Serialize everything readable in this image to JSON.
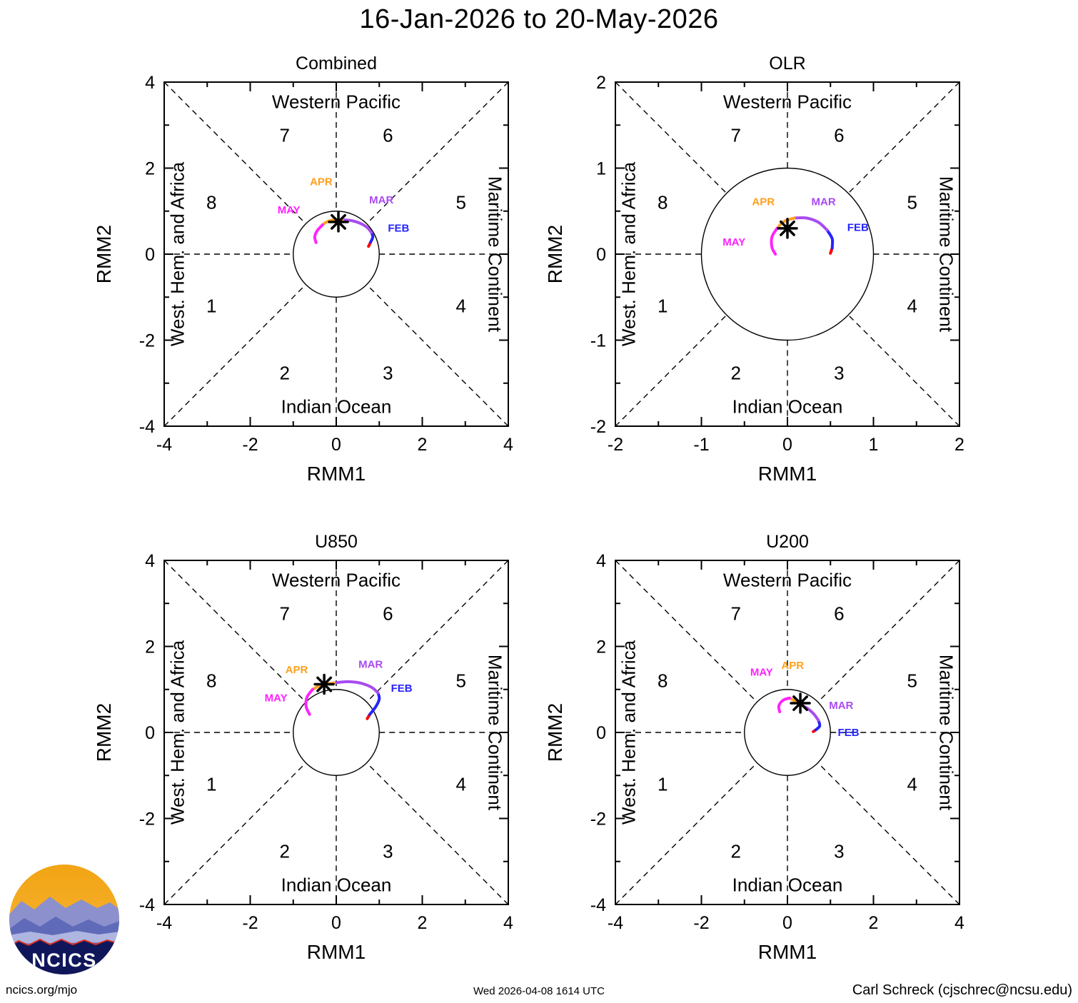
{
  "page": {
    "title": "16-Jan-2026 to 20-May-2026",
    "footer": {
      "left": "ncics.org/mjo",
      "center": "Wed 2026-04-08 1614 UTC",
      "right": "Carl Schreck (cjschrec@ncsu.edu)"
    },
    "logo": {
      "text": "NCICS"
    }
  },
  "month_colors": {
    "JAN": "#FF0000",
    "FEB": "#2424FF",
    "MAR": "#A84BF0",
    "APR": "#FFA01E",
    "MAY": "#FF22FF"
  },
  "chart_data": [
    {
      "type": "line",
      "title": "Combined",
      "xlabel": "RMM1",
      "ylabel": "RMM2",
      "xlim": [
        -4,
        4
      ],
      "ylim": [
        -4,
        4
      ],
      "major_tick": 2,
      "minor_tick": 1,
      "circle_radius": 1,
      "grid": false,
      "phase_labels": [
        "1",
        "2",
        "3",
        "4",
        "5",
        "6",
        "7",
        "8"
      ],
      "region_labels": {
        "top": "Western Pacific",
        "right": "Maritime Continent",
        "bottom": "Indian Ocean",
        "left": "West. Hem. and Africa"
      },
      "marker": {
        "x": 0.05,
        "y": 0.75
      },
      "segments": [
        {
          "month": "JAN",
          "points": [
            [
              0.75,
              0.18
            ],
            [
              0.8,
              0.28
            ]
          ]
        },
        {
          "month": "FEB",
          "points": [
            [
              0.8,
              0.28
            ],
            [
              0.85,
              0.4
            ],
            [
              0.82,
              0.5
            ]
          ]
        },
        {
          "month": "MAR",
          "points": [
            [
              0.82,
              0.5
            ],
            [
              0.72,
              0.62
            ],
            [
              0.55,
              0.72
            ],
            [
              0.35,
              0.78
            ],
            [
              0.15,
              0.8
            ]
          ]
        },
        {
          "month": "APR",
          "points": [
            [
              0.15,
              0.8
            ],
            [
              -0.05,
              0.8
            ],
            [
              -0.22,
              0.75
            ],
            [
              -0.32,
              0.68
            ]
          ]
        },
        {
          "month": "MAY",
          "points": [
            [
              -0.32,
              0.68
            ],
            [
              -0.44,
              0.55
            ],
            [
              -0.5,
              0.4
            ],
            [
              -0.47,
              0.27
            ]
          ]
        }
      ],
      "month_labels": [
        {
          "text": "APR",
          "x": -0.35,
          "y": 1.6
        },
        {
          "text": "MAR",
          "x": 1.05,
          "y": 1.18
        },
        {
          "text": "MAY",
          "x": -1.1,
          "y": 0.95
        },
        {
          "text": "FEB",
          "x": 1.45,
          "y": 0.52
        }
      ]
    },
    {
      "type": "line",
      "title": "OLR",
      "xlabel": "RMM1",
      "ylabel": "RMM2",
      "xlim": [
        -2,
        2
      ],
      "ylim": [
        -2,
        2
      ],
      "major_tick": 1,
      "minor_tick": 0.5,
      "circle_radius": 1,
      "grid": false,
      "phase_labels": [
        "1",
        "2",
        "3",
        "4",
        "5",
        "6",
        "7",
        "8"
      ],
      "region_labels": {
        "top": "Western Pacific",
        "right": "Maritime Continent",
        "bottom": "Indian Ocean",
        "left": "West. Hem. and Africa"
      },
      "marker": {
        "x": 0.0,
        "y": 0.3
      },
      "segments": [
        {
          "month": "JAN",
          "points": [
            [
              0.5,
              0.01
            ],
            [
              0.52,
              0.07
            ]
          ]
        },
        {
          "month": "FEB",
          "points": [
            [
              0.52,
              0.07
            ],
            [
              0.52,
              0.18
            ],
            [
              0.46,
              0.28
            ]
          ]
        },
        {
          "month": "MAR",
          "points": [
            [
              0.46,
              0.28
            ],
            [
              0.36,
              0.37
            ],
            [
              0.22,
              0.42
            ],
            [
              0.08,
              0.42
            ]
          ]
        },
        {
          "month": "APR",
          "points": [
            [
              0.08,
              0.42
            ],
            [
              -0.04,
              0.38
            ],
            [
              -0.12,
              0.3
            ]
          ]
        },
        {
          "month": "MAY",
          "points": [
            [
              -0.12,
              0.3
            ],
            [
              -0.18,
              0.2
            ],
            [
              -0.18,
              0.08
            ],
            [
              -0.14,
              0.0
            ]
          ]
        }
      ],
      "month_labels": [
        {
          "text": "APR",
          "x": -0.28,
          "y": 0.57
        },
        {
          "text": "MAR",
          "x": 0.42,
          "y": 0.57
        },
        {
          "text": "MAY",
          "x": -0.62,
          "y": 0.1
        },
        {
          "text": "FEB",
          "x": 0.82,
          "y": 0.27
        }
      ]
    },
    {
      "type": "line",
      "title": "U850",
      "xlabel": "RMM1",
      "ylabel": "RMM2",
      "xlim": [
        -4,
        4
      ],
      "ylim": [
        -4,
        4
      ],
      "major_tick": 2,
      "minor_tick": 1,
      "circle_radius": 1,
      "grid": false,
      "phase_labels": [
        "1",
        "2",
        "3",
        "4",
        "5",
        "6",
        "7",
        "8"
      ],
      "region_labels": {
        "top": "Western Pacific",
        "right": "Maritime Continent",
        "bottom": "Indian Ocean",
        "left": "West. Hem. and Africa"
      },
      "marker": {
        "x": -0.28,
        "y": 1.12
      },
      "segments": [
        {
          "month": "JAN",
          "points": [
            [
              0.72,
              0.32
            ],
            [
              0.78,
              0.42
            ]
          ]
        },
        {
          "month": "FEB",
          "points": [
            [
              0.78,
              0.42
            ],
            [
              0.92,
              0.6
            ],
            [
              1.0,
              0.78
            ],
            [
              0.97,
              0.92
            ]
          ]
        },
        {
          "month": "MAR",
          "points": [
            [
              0.97,
              0.92
            ],
            [
              0.82,
              1.05
            ],
            [
              0.55,
              1.15
            ],
            [
              0.25,
              1.18
            ],
            [
              -0.05,
              1.15
            ]
          ]
        },
        {
          "month": "APR",
          "points": [
            [
              -0.05,
              1.15
            ],
            [
              -0.35,
              1.1
            ],
            [
              -0.55,
              1.0
            ]
          ]
        },
        {
          "month": "MAY",
          "points": [
            [
              -0.55,
              1.0
            ],
            [
              -0.68,
              0.82
            ],
            [
              -0.7,
              0.6
            ],
            [
              -0.62,
              0.42
            ]
          ]
        }
      ],
      "month_labels": [
        {
          "text": "APR",
          "x": -0.92,
          "y": 1.38
        },
        {
          "text": "MAR",
          "x": 0.8,
          "y": 1.5
        },
        {
          "text": "MAY",
          "x": -1.4,
          "y": 0.72
        },
        {
          "text": "FEB",
          "x": 1.52,
          "y": 0.95
        }
      ]
    },
    {
      "type": "line",
      "title": "U200",
      "xlabel": "RMM1",
      "ylabel": "RMM2",
      "xlim": [
        -4,
        4
      ],
      "ylim": [
        -4,
        4
      ],
      "major_tick": 2,
      "minor_tick": 1,
      "circle_radius": 1,
      "grid": false,
      "phase_labels": [
        "1",
        "2",
        "3",
        "4",
        "5",
        "6",
        "7",
        "8"
      ],
      "region_labels": {
        "top": "Western Pacific",
        "right": "Maritime Continent",
        "bottom": "Indian Ocean",
        "left": "West. Hem. and Africa"
      },
      "marker": {
        "x": 0.3,
        "y": 0.68
      },
      "segments": [
        {
          "month": "JAN",
          "points": [
            [
              0.6,
              0.02
            ],
            [
              0.66,
              0.06
            ]
          ]
        },
        {
          "month": "FEB",
          "points": [
            [
              0.66,
              0.06
            ],
            [
              0.75,
              0.15
            ],
            [
              0.72,
              0.28
            ]
          ]
        },
        {
          "month": "MAR",
          "points": [
            [
              0.72,
              0.28
            ],
            [
              0.62,
              0.42
            ],
            [
              0.48,
              0.55
            ],
            [
              0.35,
              0.62
            ]
          ]
        },
        {
          "month": "APR",
          "points": [
            [
              0.35,
              0.62
            ],
            [
              0.2,
              0.72
            ],
            [
              0.05,
              0.8
            ]
          ]
        },
        {
          "month": "MAY",
          "points": [
            [
              0.05,
              0.8
            ],
            [
              -0.1,
              0.75
            ],
            [
              -0.2,
              0.62
            ],
            [
              -0.18,
              0.48
            ]
          ]
        }
      ],
      "month_labels": [
        {
          "text": "MAY",
          "x": -0.6,
          "y": 1.32
        },
        {
          "text": "APR",
          "x": 0.12,
          "y": 1.48
        },
        {
          "text": "MAR",
          "x": 1.25,
          "y": 0.55
        },
        {
          "text": "FEB",
          "x": 1.42,
          "y": -0.08
        }
      ]
    }
  ]
}
